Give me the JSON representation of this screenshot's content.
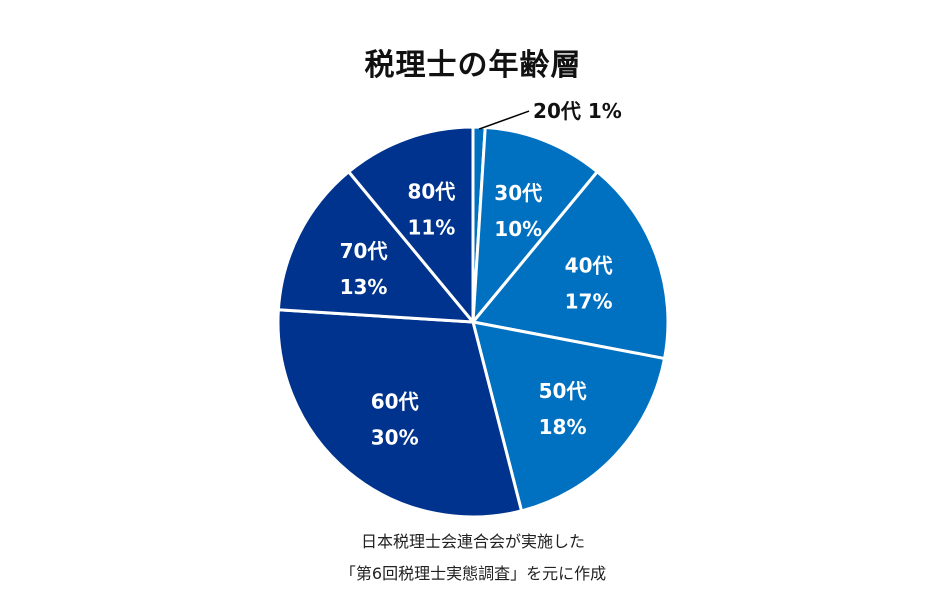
{
  "chart_data": {
    "type": "pie",
    "title": "税理士の年齢層",
    "slices": [
      {
        "category": "20代",
        "value": 1,
        "label": "1%",
        "color": "#0070c0"
      },
      {
        "category": "30代",
        "value": 10,
        "label": "10%",
        "color": "#0070c0"
      },
      {
        "category": "40代",
        "value": 17,
        "label": "17%",
        "color": "#0070c0"
      },
      {
        "category": "50代",
        "value": 18,
        "label": "18%",
        "color": "#0070c0"
      },
      {
        "category": "60代",
        "value": 30,
        "label": "30%",
        "color": "#00338d"
      },
      {
        "category": "70代",
        "value": 13,
        "label": "13%",
        "color": "#00338d"
      },
      {
        "category": "80代",
        "value": 11,
        "label": "11%",
        "color": "#00338d"
      }
    ],
    "start": "12 o'clock",
    "direction": "clockwise",
    "legend": "none"
  },
  "source": {
    "line1": "日本税理士会連合会が実施した",
    "line2": "「第6回税理士実態調査」を元に作成"
  },
  "colors": {
    "light_slice": "#0070c0",
    "dark_slice": "#00338d",
    "separator": "#ffffff",
    "inside_label": "#ffffff",
    "outside_label": "#111111"
  }
}
